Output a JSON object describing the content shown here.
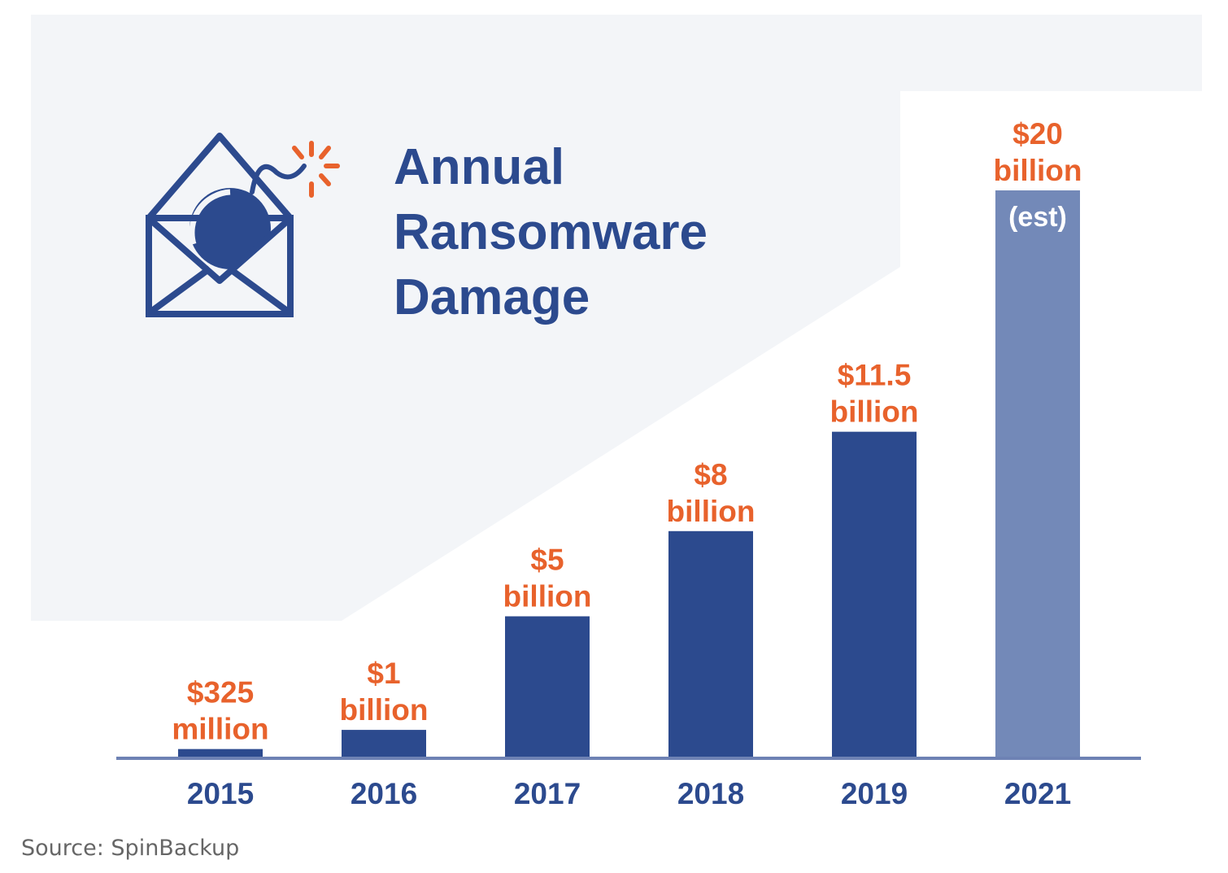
{
  "chart_data": {
    "type": "bar",
    "title": "Annual Ransomware Damage",
    "title_lines": [
      "Annual",
      "Ransomware",
      "Damage"
    ],
    "categories": [
      "2015",
      "2016",
      "2017",
      "2018",
      "2019",
      "2021"
    ],
    "values": [
      0.325,
      1,
      5,
      8,
      11.5,
      20
    ],
    "unit": "USD billions",
    "data_labels": [
      [
        "$325",
        "million"
      ],
      [
        "$1",
        "billion"
      ],
      [
        "$5",
        "billion"
      ],
      [
        "$8",
        "billion"
      ],
      [
        "$11.5",
        "billion"
      ],
      [
        "$20",
        "billion"
      ]
    ],
    "estimate_note": "(est)",
    "estimated_categories": [
      "2021"
    ],
    "xlabel": "",
    "ylabel": "",
    "source": "Source: SpinBackup",
    "colors": {
      "bar": "#2c4a8e",
      "bar_estimate": "#7389b8",
      "label": "#e8622c",
      "axis": "#2c4a8e",
      "background_panel": "#f3f5f8"
    },
    "icon": "envelope-bomb-icon"
  }
}
